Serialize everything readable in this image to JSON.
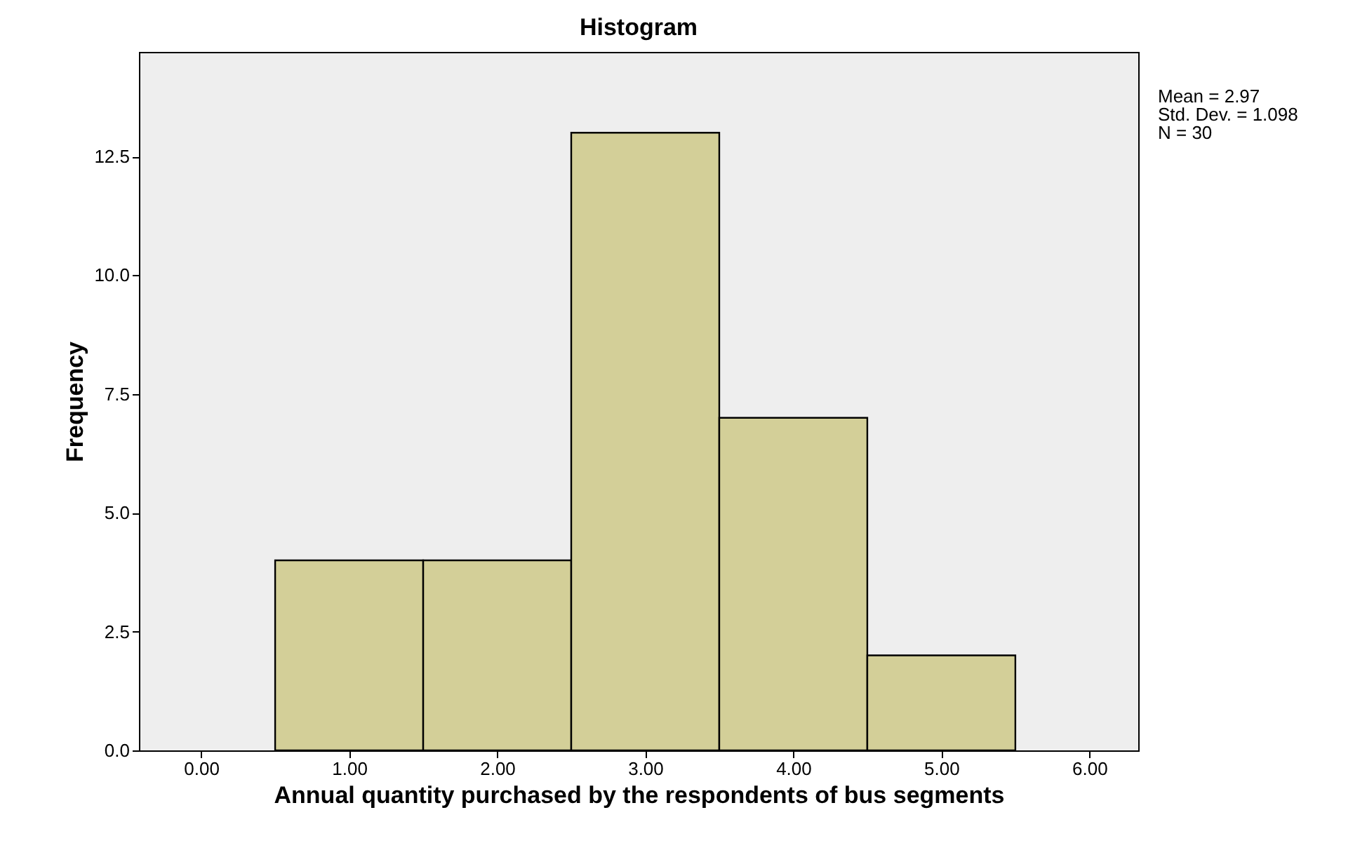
{
  "chart_data": {
    "type": "histogram",
    "title": "Histogram",
    "xlabel": "Annual quantity purchased by the respondents of bus segments",
    "ylabel": "Frequency",
    "bins": [
      0.5,
      1.5,
      2.5,
      3.5,
      4.5,
      5.5
    ],
    "values": [
      4,
      4,
      13,
      7,
      2
    ],
    "color": "#d3cf98",
    "xlim": [
      -0.42,
      6.33
    ],
    "xticks": [
      {
        "value": 0,
        "label": "0.00"
      },
      {
        "value": 1,
        "label": "1.00"
      },
      {
        "value": 2,
        "label": "2.00"
      },
      {
        "value": 3,
        "label": "3.00"
      },
      {
        "value": 4,
        "label": "4.00"
      },
      {
        "value": 5,
        "label": "5.00"
      },
      {
        "value": 6,
        "label": "6.00"
      }
    ],
    "ylim": [
      0,
      14.7
    ],
    "yticks": [
      {
        "value": 0,
        "label": "0.0"
      },
      {
        "value": 2.5,
        "label": "2.5"
      },
      {
        "value": 5,
        "label": "5.0"
      },
      {
        "value": 7.5,
        "label": "7.5"
      },
      {
        "value": 10,
        "label": "10.0"
      },
      {
        "value": 12.5,
        "label": "12.5"
      }
    ],
    "grid": false,
    "annotations": [
      "Mean = 2.97",
      "Std. Dev. = 1.098",
      "N = 30"
    ]
  }
}
